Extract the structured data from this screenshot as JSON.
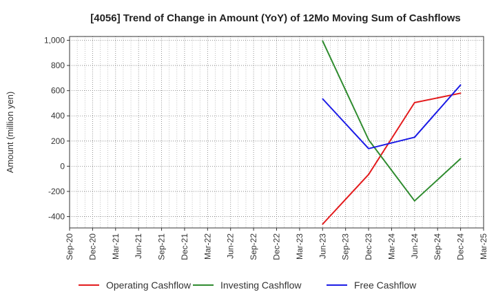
{
  "chart_data": {
    "type": "line",
    "title": "[4056]  Trend of Change in Amount (YoY) of 12Mo Moving Sum of Cashflows",
    "xlabel": "",
    "ylabel": "Amount (million yen)",
    "ylim": [
      -490,
      1030
    ],
    "yticks": [
      -400,
      -200,
      0,
      200,
      400,
      600,
      800,
      1000
    ],
    "ytick_labels": [
      "-400",
      "-200",
      "0",
      "200",
      "400",
      "600",
      "800",
      "1,000"
    ],
    "x_tick_labels": [
      "Sep-20",
      "Dec-20",
      "Mar-21",
      "Jun-21",
      "Sep-21",
      "Dec-21",
      "Mar-22",
      "Jun-22",
      "Sep-22",
      "Dec-22",
      "Mar-23",
      "Jun-23",
      "Sep-23",
      "Dec-23",
      "Mar-24",
      "Jun-24",
      "Sep-24",
      "Dec-24",
      "Mar-25"
    ],
    "grid": true,
    "legend_position": "bottom",
    "series": [
      {
        "name": "Operating Cashflow",
        "color": "#e31a1c",
        "x": [
          "Jun-23",
          "Dec-23",
          "Jun-24",
          "Dec-24"
        ],
        "values": [
          -460,
          -65,
          505,
          580
        ]
      },
      {
        "name": "Investing Cashflow",
        "color": "#2e8b2e",
        "x": [
          "Jun-23",
          "Dec-23",
          "Jun-24",
          "Dec-24"
        ],
        "values": [
          995,
          210,
          -275,
          60
        ]
      },
      {
        "name": "Free Cashflow",
        "color": "#1a1ae6",
        "x": [
          "Jun-23",
          "Dec-23",
          "Jun-24",
          "Dec-24"
        ],
        "values": [
          535,
          140,
          230,
          645
        ]
      }
    ]
  }
}
